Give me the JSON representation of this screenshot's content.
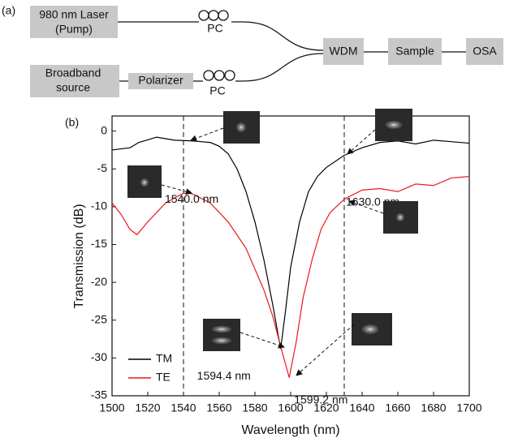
{
  "panel_a": {
    "label": "(a)",
    "nodes": [
      {
        "lines": [
          "980 nm Laser",
          "(Pump)"
        ]
      },
      {
        "lines": [
          "Broadband",
          "source"
        ]
      },
      {
        "lines": [
          "Polarizer"
        ]
      },
      {
        "lines": [
          "WDM"
        ]
      },
      {
        "lines": [
          "Sample"
        ]
      },
      {
        "lines": [
          "OSA"
        ]
      },
      {
        "lines": [
          "PC"
        ]
      },
      {
        "lines": [
          "PC"
        ]
      }
    ]
  },
  "chart_data": {
    "type": "line",
    "panel_label": "(b)",
    "x_label": "Wavelength (nm)",
    "y_label": "Transmission (dB)",
    "xlim": [
      1500,
      1700
    ],
    "ylim": [
      -35,
      2
    ],
    "xticks": [
      1500,
      1520,
      1540,
      1560,
      1580,
      1600,
      1620,
      1640,
      1660,
      1680,
      1700
    ],
    "yticks": [
      0,
      -5,
      -10,
      -15,
      -20,
      -25,
      -30,
      -35
    ],
    "legend": "lower left",
    "vlines": [
      1540,
      1630
    ],
    "series": [
      {
        "name": "TM",
        "color": "#000000",
        "x": [
          1500,
          1510,
          1515,
          1525,
          1535,
          1545,
          1555,
          1560,
          1565,
          1570,
          1575,
          1580,
          1585,
          1590,
          1594.4,
          1597,
          1600,
          1605,
          1610,
          1615,
          1620,
          1630,
          1640,
          1650,
          1660,
          1670,
          1680,
          1690,
          1700
        ],
        "values": [
          -2.5,
          -2.2,
          -1.5,
          -0.8,
          -1.2,
          -1.3,
          -1.5,
          -2,
          -3,
          -5,
          -8,
          -12,
          -17,
          -23,
          -28.8,
          -24,
          -18,
          -12,
          -8,
          -6,
          -4.8,
          -3.2,
          -2.2,
          -1.5,
          -1.3,
          -1.7,
          -1.2,
          -1.4,
          -1.6
        ]
      },
      {
        "name": "TE",
        "color": "#e8191c",
        "x": [
          1500,
          1505,
          1510,
          1514,
          1520,
          1530,
          1540,
          1545,
          1555,
          1565,
          1575,
          1585,
          1590,
          1595,
          1599.2,
          1603,
          1607,
          1612,
          1617,
          1622,
          1630,
          1640,
          1650,
          1660,
          1670,
          1680,
          1690,
          1700
        ],
        "values": [
          -9.5,
          -11,
          -13,
          -13.7,
          -12,
          -9.5,
          -8.2,
          -8.3,
          -9.5,
          -12,
          -15.5,
          -21,
          -24.5,
          -29,
          -32.6,
          -28,
          -22,
          -17,
          -13,
          -10.8,
          -9,
          -7.8,
          -7.6,
          -8,
          -7,
          -7.2,
          -6.2,
          -6
        ]
      }
    ],
    "annotations": [
      {
        "text": "1540.0 nm",
        "x": 1540,
        "y": -8.2
      },
      {
        "text": "1630.0 nm",
        "x": 1630,
        "y": -9
      },
      {
        "text": "1594.4 nm",
        "x": 1594.4,
        "y": -28.8
      },
      {
        "text": "1599.2 nm",
        "x": 1599.2,
        "y": -32.6
      }
    ]
  }
}
